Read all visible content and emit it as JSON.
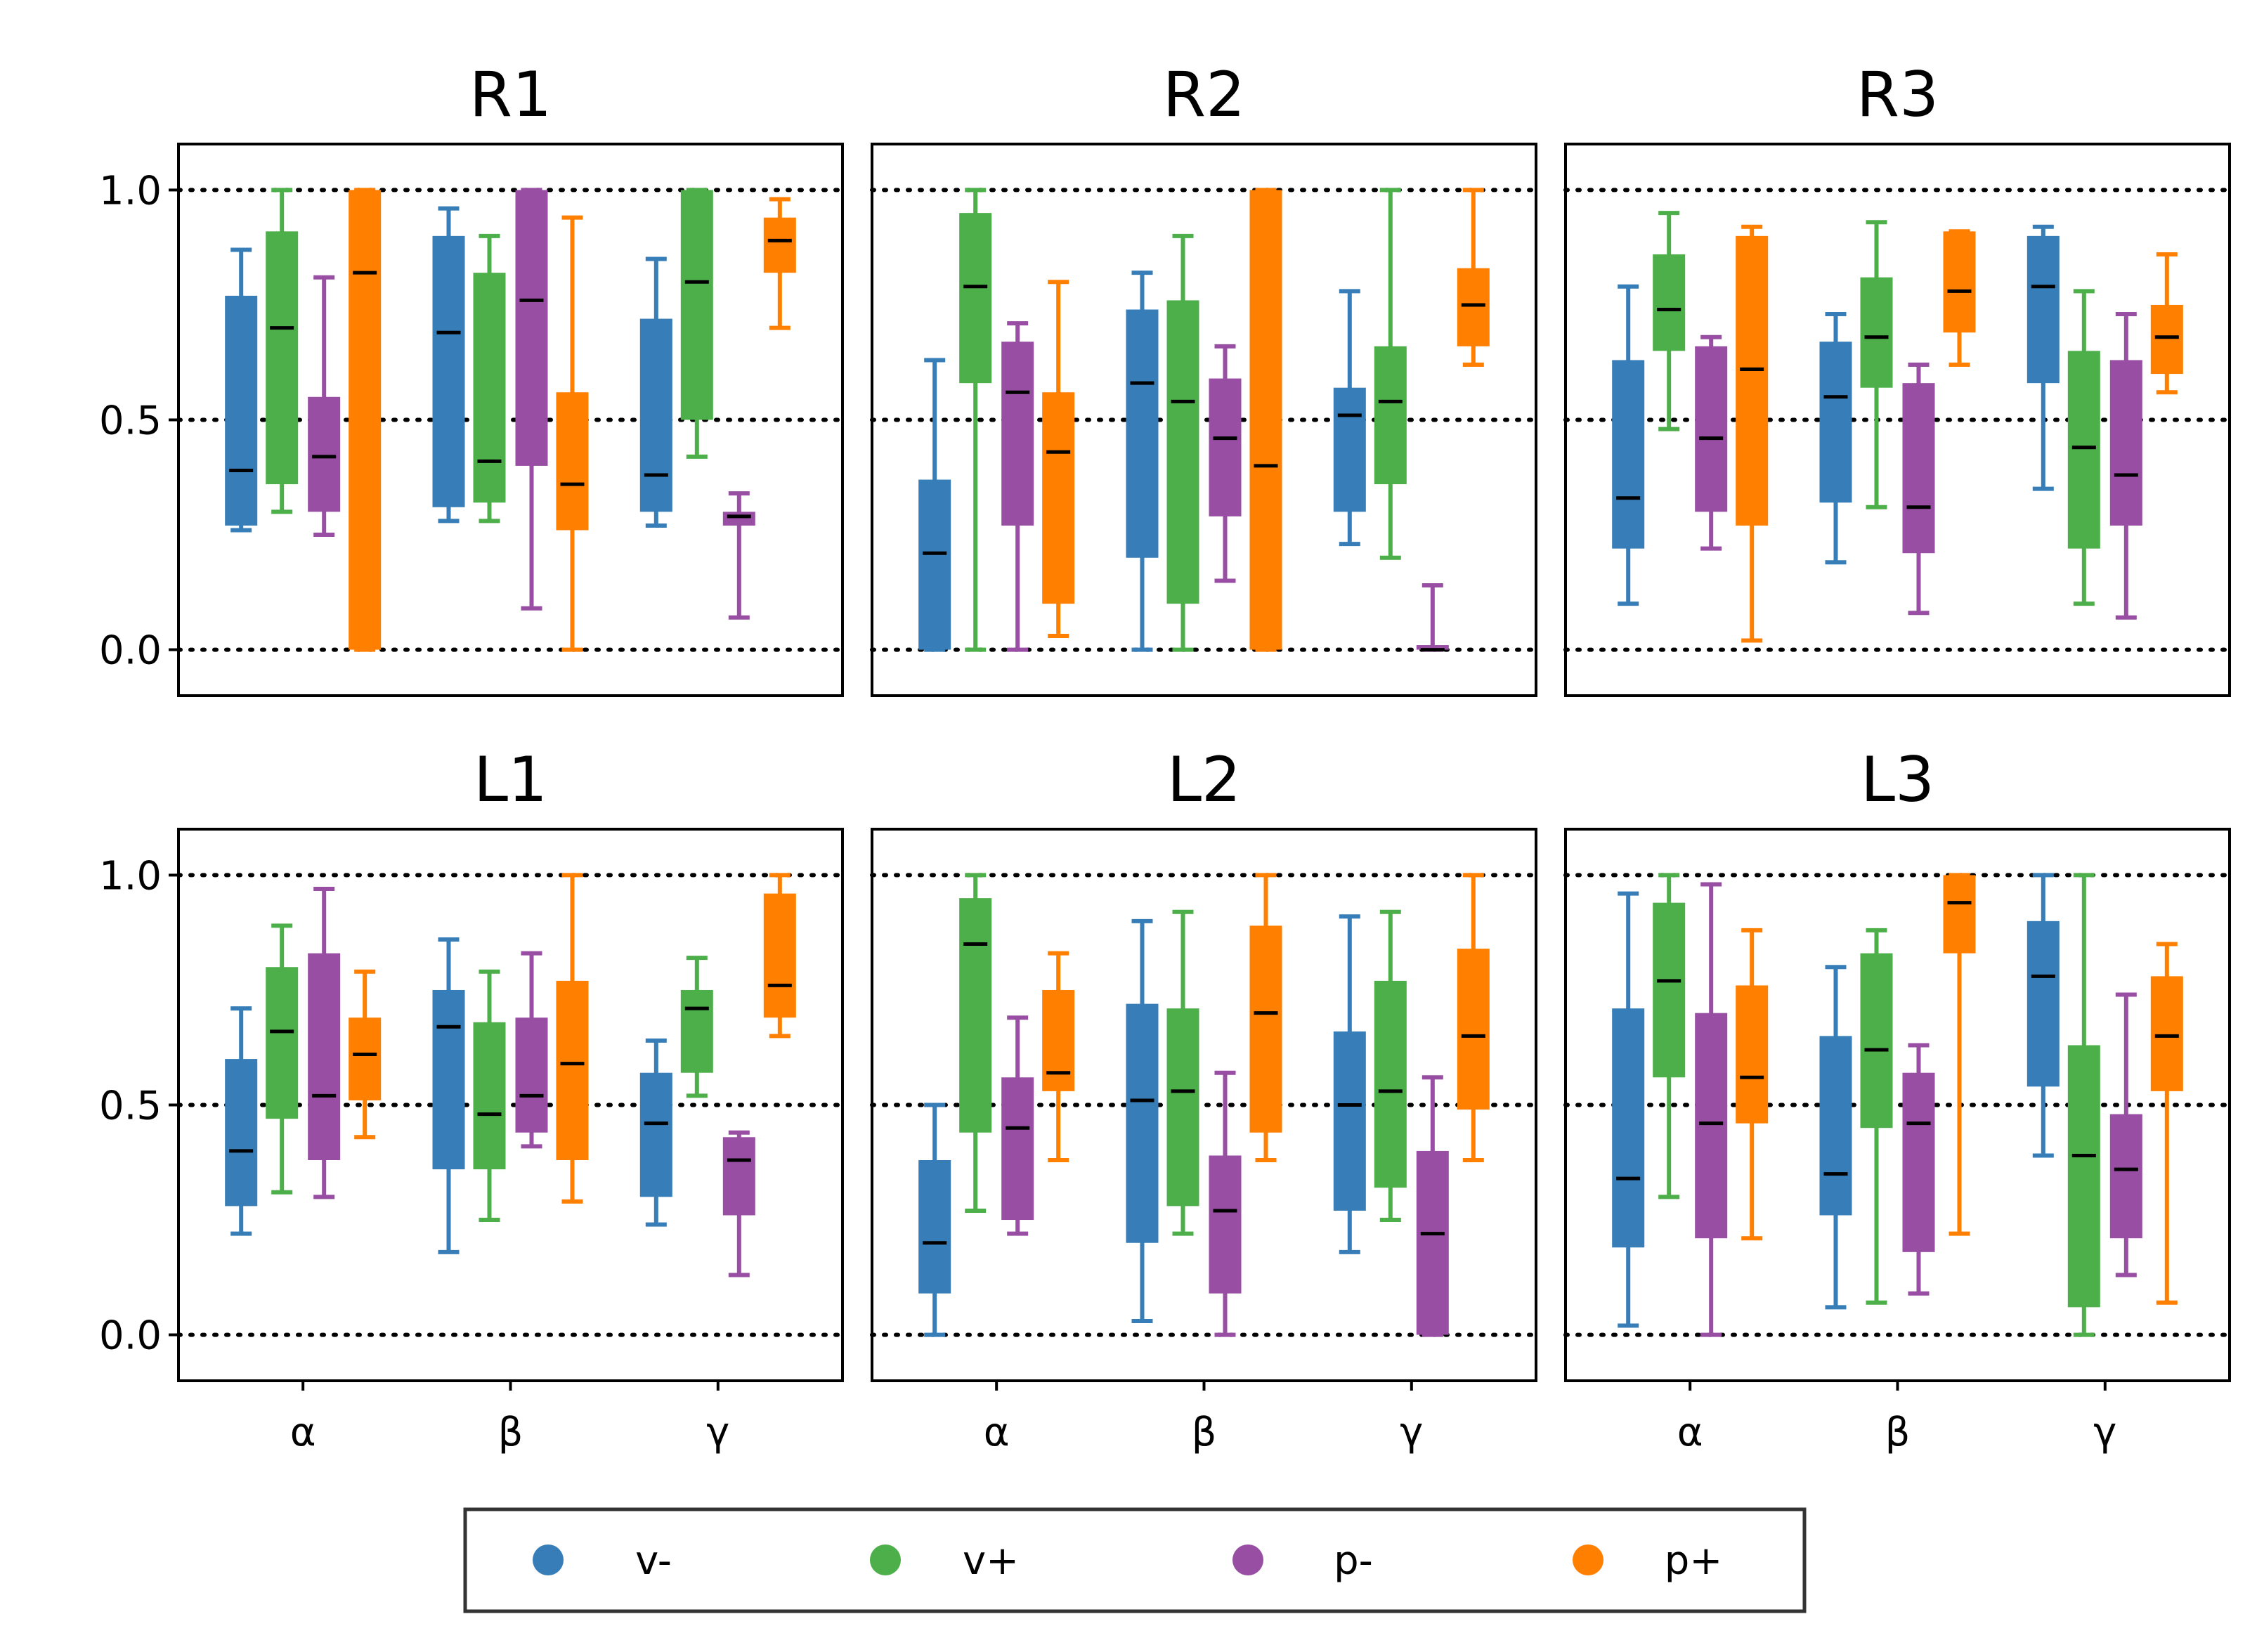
{
  "colors": {
    "v-": "#377eb8",
    "v+": "#4daf4a",
    "p-": "#984ea3",
    "p+": "#ff7f00",
    "median": "#000000",
    "reference_line": "#000000"
  },
  "legend": {
    "placement": "bottom-center",
    "items": [
      {
        "name": "v-",
        "color": "#377eb8"
      },
      {
        "name": "v+",
        "color": "#4daf4a"
      },
      {
        "name": "p-",
        "color": "#984ea3"
      },
      {
        "name": "p+",
        "color": "#ff7f00"
      }
    ]
  },
  "chart_data": [
    {
      "type": "box",
      "title": "R1",
      "categories": [
        "α",
        "β",
        "γ"
      ],
      "ylim": [
        -0.1,
        1.1
      ],
      "yticks": [
        "0.0",
        "0.5",
        "1.0"
      ],
      "reference_lines": [
        0,
        0.5,
        1
      ],
      "series": [
        {
          "name": "v-",
          "boxes": [
            {
              "whislo": 0.26,
              "q1": 0.27,
              "med": 0.39,
              "q3": 0.77,
              "whishi": 0.87
            },
            {
              "whislo": 0.28,
              "q1": 0.31,
              "med": 0.69,
              "q3": 0.9,
              "whishi": 0.96
            },
            {
              "whislo": 0.27,
              "q1": 0.3,
              "med": 0.38,
              "q3": 0.72,
              "whishi": 0.85
            }
          ]
        },
        {
          "name": "v+",
          "boxes": [
            {
              "whislo": 0.3,
              "q1": 0.36,
              "med": 0.7,
              "q3": 0.91,
              "whishi": 1.0
            },
            {
              "whislo": 0.28,
              "q1": 0.32,
              "med": 0.41,
              "q3": 0.82,
              "whishi": 0.9
            },
            {
              "whislo": 0.42,
              "q1": 0.5,
              "med": 0.8,
              "q3": 1.0,
              "whishi": 1.0
            }
          ]
        },
        {
          "name": "p-",
          "boxes": [
            {
              "whislo": 0.25,
              "q1": 0.3,
              "med": 0.42,
              "q3": 0.55,
              "whishi": 0.81
            },
            {
              "whislo": 0.09,
              "q1": 0.4,
              "med": 0.76,
              "q3": 1.0,
              "whishi": 1.0
            },
            {
              "whislo": 0.07,
              "q1": 0.27,
              "med": 0.29,
              "q3": 0.3,
              "whishi": 0.34
            }
          ]
        },
        {
          "name": "p+",
          "boxes": [
            {
              "whislo": 0.0,
              "q1": 0.0,
              "med": 0.82,
              "q3": 1.0,
              "whishi": 1.0
            },
            {
              "whislo": 0.0,
              "q1": 0.26,
              "med": 0.36,
              "q3": 0.56,
              "whishi": 0.94
            },
            {
              "whislo": 0.7,
              "q1": 0.82,
              "med": 0.89,
              "q3": 0.94,
              "whishi": 0.98
            }
          ]
        }
      ]
    },
    {
      "type": "box",
      "title": "R2",
      "categories": [
        "α",
        "β",
        "γ"
      ],
      "ylim": [
        -0.1,
        1.1
      ],
      "yticks": [
        "0.0",
        "0.5",
        "1.0"
      ],
      "reference_lines": [
        0,
        0.5,
        1
      ],
      "series": [
        {
          "name": "v-",
          "boxes": [
            {
              "whislo": 0.0,
              "q1": 0.0,
              "med": 0.21,
              "q3": 0.37,
              "whishi": 0.63
            },
            {
              "whislo": 0.0,
              "q1": 0.2,
              "med": 0.58,
              "q3": 0.74,
              "whishi": 0.82
            },
            {
              "whislo": 0.23,
              "q1": 0.3,
              "med": 0.51,
              "q3": 0.57,
              "whishi": 0.78
            }
          ]
        },
        {
          "name": "v+",
          "boxes": [
            {
              "whislo": 0.0,
              "q1": 0.58,
              "med": 0.79,
              "q3": 0.95,
              "whishi": 1.0
            },
            {
              "whislo": 0.0,
              "q1": 0.1,
              "med": 0.54,
              "q3": 0.76,
              "whishi": 0.9
            },
            {
              "whislo": 0.2,
              "q1": 0.36,
              "med": 0.54,
              "q3": 0.66,
              "whishi": 1.0
            }
          ]
        },
        {
          "name": "p-",
          "boxes": [
            {
              "whislo": 0.0,
              "q1": 0.27,
              "med": 0.56,
              "q3": 0.67,
              "whishi": 0.71
            },
            {
              "whislo": 0.15,
              "q1": 0.29,
              "med": 0.46,
              "q3": 0.59,
              "whishi": 0.66
            },
            {
              "whislo": 0.0,
              "q1": 0.0,
              "med": 0.0,
              "q3": 0.01,
              "whishi": 0.14
            }
          ]
        },
        {
          "name": "p+",
          "boxes": [
            {
              "whislo": 0.03,
              "q1": 0.1,
              "med": 0.43,
              "q3": 0.56,
              "whishi": 0.8
            },
            {
              "whislo": 0.0,
              "q1": 0.0,
              "med": 0.4,
              "q3": 1.0,
              "whishi": 1.0
            },
            {
              "whislo": 0.62,
              "q1": 0.66,
              "med": 0.75,
              "q3": 0.83,
              "whishi": 1.0
            }
          ]
        }
      ]
    },
    {
      "type": "box",
      "title": "R3",
      "categories": [
        "α",
        "β",
        "γ"
      ],
      "ylim": [
        -0.1,
        1.1
      ],
      "yticks": [
        "0.0",
        "0.5",
        "1.0"
      ],
      "reference_lines": [
        0,
        0.5,
        1
      ],
      "series": [
        {
          "name": "v-",
          "boxes": [
            {
              "whislo": 0.1,
              "q1": 0.22,
              "med": 0.33,
              "q3": 0.63,
              "whishi": 0.79
            },
            {
              "whislo": 0.19,
              "q1": 0.32,
              "med": 0.55,
              "q3": 0.67,
              "whishi": 0.73
            },
            {
              "whislo": 0.35,
              "q1": 0.58,
              "med": 0.79,
              "q3": 0.9,
              "whishi": 0.92
            }
          ]
        },
        {
          "name": "v+",
          "boxes": [
            {
              "whislo": 0.48,
              "q1": 0.65,
              "med": 0.74,
              "q3": 0.86,
              "whishi": 0.95
            },
            {
              "whislo": 0.31,
              "q1": 0.57,
              "med": 0.68,
              "q3": 0.81,
              "whishi": 0.93
            },
            {
              "whislo": 0.1,
              "q1": 0.22,
              "med": 0.44,
              "q3": 0.65,
              "whishi": 0.78
            }
          ]
        },
        {
          "name": "p-",
          "boxes": [
            {
              "whislo": 0.22,
              "q1": 0.3,
              "med": 0.46,
              "q3": 0.66,
              "whishi": 0.68
            },
            {
              "whislo": 0.08,
              "q1": 0.21,
              "med": 0.31,
              "q3": 0.58,
              "whishi": 0.62
            },
            {
              "whislo": 0.07,
              "q1": 0.27,
              "med": 0.38,
              "q3": 0.63,
              "whishi": 0.73
            }
          ]
        },
        {
          "name": "p+",
          "boxes": [
            {
              "whislo": 0.02,
              "q1": 0.27,
              "med": 0.61,
              "q3": 0.9,
              "whishi": 0.92
            },
            {
              "whislo": 0.62,
              "q1": 0.69,
              "med": 0.78,
              "q3": 0.91,
              "whishi": 0.91
            },
            {
              "whislo": 0.56,
              "q1": 0.6,
              "med": 0.68,
              "q3": 0.75,
              "whishi": 0.86
            }
          ]
        }
      ]
    },
    {
      "type": "box",
      "title": "L1",
      "categories": [
        "α",
        "β",
        "γ"
      ],
      "ylim": [
        -0.1,
        1.1
      ],
      "yticks": [
        "0.0",
        "0.5",
        "1.0"
      ],
      "reference_lines": [
        0,
        0.5,
        1
      ],
      "series": [
        {
          "name": "v-",
          "boxes": [
            {
              "whislo": 0.22,
              "q1": 0.28,
              "med": 0.4,
              "q3": 0.6,
              "whishi": 0.71
            },
            {
              "whislo": 0.18,
              "q1": 0.36,
              "med": 0.67,
              "q3": 0.75,
              "whishi": 0.86
            },
            {
              "whislo": 0.24,
              "q1": 0.3,
              "med": 0.46,
              "q3": 0.57,
              "whishi": 0.64
            }
          ]
        },
        {
          "name": "v+",
          "boxes": [
            {
              "whislo": 0.31,
              "q1": 0.47,
              "med": 0.66,
              "q3": 0.8,
              "whishi": 0.89
            },
            {
              "whislo": 0.25,
              "q1": 0.36,
              "med": 0.48,
              "q3": 0.68,
              "whishi": 0.79
            },
            {
              "whislo": 0.52,
              "q1": 0.57,
              "med": 0.71,
              "q3": 0.75,
              "whishi": 0.82
            }
          ]
        },
        {
          "name": "p-",
          "boxes": [
            {
              "whislo": 0.3,
              "q1": 0.38,
              "med": 0.52,
              "q3": 0.83,
              "whishi": 0.97
            },
            {
              "whislo": 0.41,
              "q1": 0.44,
              "med": 0.52,
              "q3": 0.69,
              "whishi": 0.83
            },
            {
              "whislo": 0.13,
              "q1": 0.26,
              "med": 0.38,
              "q3": 0.43,
              "whishi": 0.44
            }
          ]
        },
        {
          "name": "p+",
          "boxes": [
            {
              "whislo": 0.43,
              "q1": 0.51,
              "med": 0.61,
              "q3": 0.69,
              "whishi": 0.79
            },
            {
              "whislo": 0.29,
              "q1": 0.38,
              "med": 0.59,
              "q3": 0.77,
              "whishi": 1.0
            },
            {
              "whislo": 0.65,
              "q1": 0.69,
              "med": 0.76,
              "q3": 0.96,
              "whishi": 1.0
            }
          ]
        }
      ]
    },
    {
      "type": "box",
      "title": "L2",
      "categories": [
        "α",
        "β",
        "γ"
      ],
      "ylim": [
        -0.1,
        1.1
      ],
      "yticks": [
        "0.0",
        "0.5",
        "1.0"
      ],
      "reference_lines": [
        0,
        0.5,
        1
      ],
      "series": [
        {
          "name": "v-",
          "boxes": [
            {
              "whislo": 0.0,
              "q1": 0.09,
              "med": 0.2,
              "q3": 0.38,
              "whishi": 0.5
            },
            {
              "whislo": 0.03,
              "q1": 0.2,
              "med": 0.51,
              "q3": 0.72,
              "whishi": 0.9
            },
            {
              "whislo": 0.18,
              "q1": 0.27,
              "med": 0.5,
              "q3": 0.66,
              "whishi": 0.91
            }
          ]
        },
        {
          "name": "v+",
          "boxes": [
            {
              "whislo": 0.27,
              "q1": 0.44,
              "med": 0.85,
              "q3": 0.95,
              "whishi": 1.0
            },
            {
              "whislo": 0.22,
              "q1": 0.28,
              "med": 0.53,
              "q3": 0.71,
              "whishi": 0.92
            },
            {
              "whislo": 0.25,
              "q1": 0.32,
              "med": 0.53,
              "q3": 0.77,
              "whishi": 0.92
            }
          ]
        },
        {
          "name": "p-",
          "boxes": [
            {
              "whislo": 0.22,
              "q1": 0.25,
              "med": 0.45,
              "q3": 0.56,
              "whishi": 0.69
            },
            {
              "whislo": 0.0,
              "q1": 0.09,
              "med": 0.27,
              "q3": 0.39,
              "whishi": 0.57
            },
            {
              "whislo": 0.0,
              "q1": 0.0,
              "med": 0.22,
              "q3": 0.4,
              "whishi": 0.56
            }
          ]
        },
        {
          "name": "p+",
          "boxes": [
            {
              "whislo": 0.38,
              "q1": 0.53,
              "med": 0.57,
              "q3": 0.75,
              "whishi": 0.83
            },
            {
              "whislo": 0.38,
              "q1": 0.44,
              "med": 0.7,
              "q3": 0.89,
              "whishi": 1.0
            },
            {
              "whislo": 0.38,
              "q1": 0.49,
              "med": 0.65,
              "q3": 0.84,
              "whishi": 1.0
            }
          ]
        }
      ]
    },
    {
      "type": "box",
      "title": "L3",
      "categories": [
        "α",
        "β",
        "γ"
      ],
      "ylim": [
        -0.1,
        1.1
      ],
      "yticks": [
        "0.0",
        "0.5",
        "1.0"
      ],
      "reference_lines": [
        0,
        0.5,
        1
      ],
      "series": [
        {
          "name": "v-",
          "boxes": [
            {
              "whislo": 0.02,
              "q1": 0.19,
              "med": 0.34,
              "q3": 0.71,
              "whishi": 0.96
            },
            {
              "whislo": 0.06,
              "q1": 0.26,
              "med": 0.35,
              "q3": 0.65,
              "whishi": 0.8
            },
            {
              "whislo": 0.39,
              "q1": 0.54,
              "med": 0.78,
              "q3": 0.9,
              "whishi": 1.0
            }
          ]
        },
        {
          "name": "v+",
          "boxes": [
            {
              "whislo": 0.3,
              "q1": 0.56,
              "med": 0.77,
              "q3": 0.94,
              "whishi": 1.0
            },
            {
              "whislo": 0.07,
              "q1": 0.45,
              "med": 0.62,
              "q3": 0.83,
              "whishi": 0.88
            },
            {
              "whislo": 0.0,
              "q1": 0.06,
              "med": 0.39,
              "q3": 0.63,
              "whishi": 1.0
            }
          ]
        },
        {
          "name": "p-",
          "boxes": [
            {
              "whislo": 0.0,
              "q1": 0.21,
              "med": 0.46,
              "q3": 0.7,
              "whishi": 0.98
            },
            {
              "whislo": 0.09,
              "q1": 0.18,
              "med": 0.46,
              "q3": 0.57,
              "whishi": 0.63
            },
            {
              "whislo": 0.13,
              "q1": 0.21,
              "med": 0.36,
              "q3": 0.48,
              "whishi": 0.74
            }
          ]
        },
        {
          "name": "p+",
          "boxes": [
            {
              "whislo": 0.21,
              "q1": 0.46,
              "med": 0.56,
              "q3": 0.76,
              "whishi": 0.88
            },
            {
              "whislo": 0.22,
              "q1": 0.83,
              "med": 0.94,
              "q3": 1.0,
              "whishi": 1.0
            },
            {
              "whislo": 0.07,
              "q1": 0.53,
              "med": 0.65,
              "q3": 0.78,
              "whishi": 0.85
            }
          ]
        }
      ]
    }
  ]
}
